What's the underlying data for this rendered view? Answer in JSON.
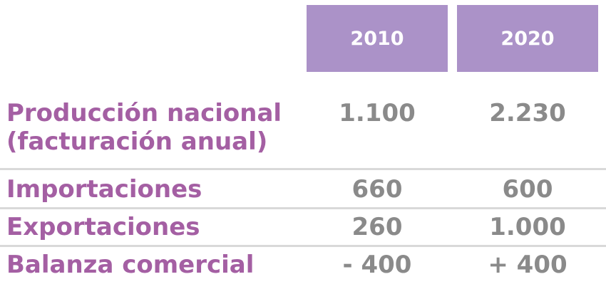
{
  "chart_data": {
    "type": "table",
    "columns": [
      "2010",
      "2020"
    ],
    "rows": [
      {
        "label_lines": [
          "Producción nacional",
          "(facturación anual)"
        ],
        "values": [
          "1.100",
          "2.230"
        ]
      },
      {
        "label": "Importaciones",
        "values": [
          "660",
          "600"
        ]
      },
      {
        "label": "Exportaciones",
        "values": [
          "260",
          "1.000"
        ]
      },
      {
        "label": "Balanza comercial",
        "values": [
          "- 400",
          "+ 400"
        ]
      }
    ]
  },
  "colors": {
    "header_bg": "#ab92c8",
    "header_text": "#ffffff",
    "label_text": "#a45fa3",
    "value_text": "#8a8a8a",
    "divider": "#d9d9d9"
  }
}
